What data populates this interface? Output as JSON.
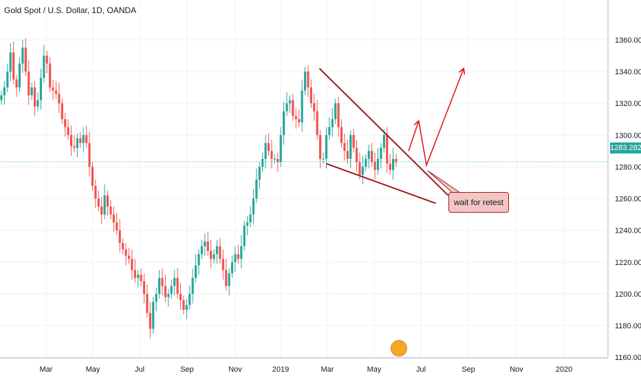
{
  "header": {
    "title": "Gold Spot / U.S. Dollar, 1D, OANDA"
  },
  "chart_data": {
    "type": "candlestick",
    "title": "Gold Spot / U.S. Dollar, 1D, OANDA",
    "y_ticks": [
      1160,
      1180,
      1200,
      1220,
      1240,
      1260,
      1280,
      1300,
      1320,
      1340,
      1360
    ],
    "y_tick_labels": [
      "1160.000",
      "1180.000",
      "1200.000",
      "1220.000",
      "1240.000",
      "1260.000",
      "1280.000",
      "1300.000",
      "1320.000",
      "1340.000",
      "1360.000"
    ],
    "ylim": [
      1153,
      1376
    ],
    "x_ticks": [
      "Mar",
      "May",
      "Jul",
      "Sep",
      "Nov",
      "2019",
      "Mar",
      "May",
      "Jul",
      "Sep",
      "Nov",
      "2020"
    ],
    "current_price": 1283.282,
    "current_price_label": "1283.282",
    "close_series": [
      1325,
      1330,
      1340,
      1352,
      1335,
      1330,
      1345,
      1355,
      1340,
      1325,
      1330,
      1318,
      1322,
      1336,
      1350,
      1345,
      1330,
      1328,
      1326,
      1320,
      1310,
      1305,
      1300,
      1293,
      1292,
      1298,
      1295,
      1300,
      1295,
      1280,
      1268,
      1260,
      1255,
      1250,
      1262,
      1255,
      1250,
      1245,
      1240,
      1232,
      1228,
      1224,
      1222,
      1215,
      1210,
      1212,
      1208,
      1200,
      1188,
      1178,
      1195,
      1200,
      1210,
      1205,
      1198,
      1200,
      1205,
      1210,
      1200,
      1196,
      1190,
      1193,
      1200,
      1210,
      1218,
      1225,
      1230,
      1233,
      1227,
      1222,
      1225,
      1230,
      1222,
      1215,
      1205,
      1213,
      1220,
      1225,
      1222,
      1230,
      1243,
      1245,
      1250,
      1260,
      1272,
      1280,
      1285,
      1295,
      1290,
      1285,
      1285,
      1283,
      1300,
      1315,
      1320,
      1322,
      1312,
      1310,
      1308,
      1328,
      1340,
      1330,
      1320,
      1315,
      1300,
      1285,
      1285,
      1300,
      1305,
      1310,
      1320,
      1305,
      1295,
      1290,
      1285,
      1300,
      1292,
      1283,
      1275,
      1280,
      1285,
      1290,
      1283,
      1278,
      1285,
      1292,
      1300,
      1282,
      1278,
      1285,
      1283
    ],
    "annotations": {
      "callout_text": "wait for retest",
      "upper_trendline": {
        "from": [
          "2019-02-20",
          1342
        ],
        "to": [
          "2019-08-05",
          1262
        ]
      },
      "lower_trendline": {
        "from": [
          "2019-03-01",
          1282
        ],
        "to": [
          "2019-07-20",
          1257
        ]
      },
      "projection_path": [
        [
          "2019-06-15",
          1290
        ],
        [
          "2019-06-28",
          1309
        ],
        [
          "2019-07-08",
          1281
        ],
        [
          "2019-08-25",
          1342
        ]
      ]
    },
    "colors": {
      "up": "#26a69a",
      "down": "#ef5350",
      "annotation": "#9b1c1c",
      "projection": "#e01b1b",
      "price_line": "#26a69a"
    },
    "grid": true
  }
}
